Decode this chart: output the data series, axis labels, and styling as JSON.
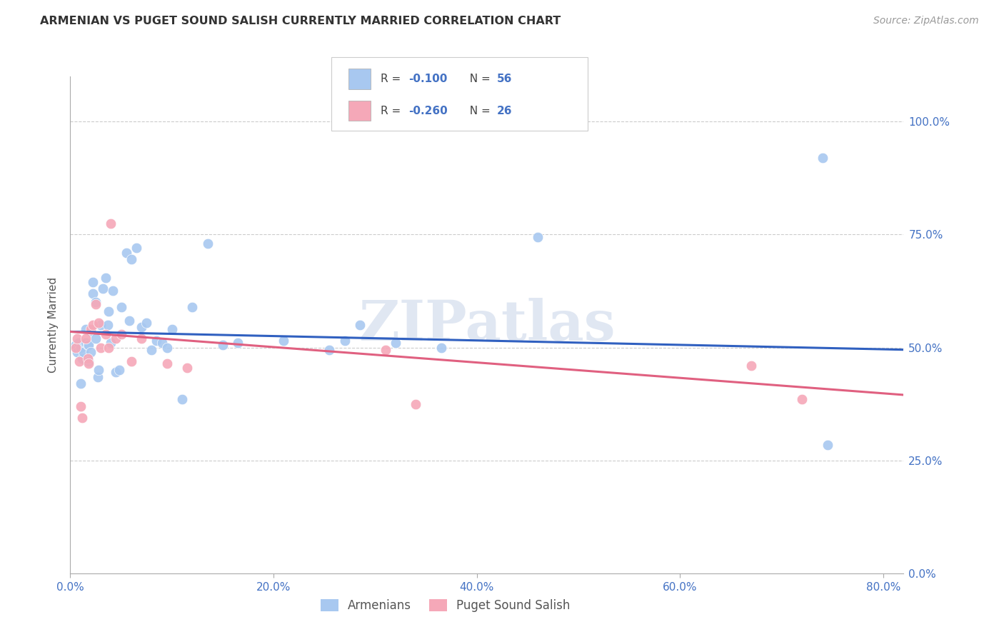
{
  "title": "ARMENIAN VS PUGET SOUND SALISH CURRENTLY MARRIED CORRELATION CHART",
  "source": "Source: ZipAtlas.com",
  "xlim": [
    0.0,
    0.82
  ],
  "ylim": [
    0.0,
    1.1
  ],
  "ylabel": "Currently Married",
  "legend_labels": [
    "Armenians",
    "Puget Sound Salish"
  ],
  "blue_R": -0.1,
  "blue_N": 56,
  "pink_R": -0.26,
  "pink_N": 26,
  "blue_color": "#a8c8f0",
  "pink_color": "#f5a8b8",
  "blue_line_color": "#3060c0",
  "pink_line_color": "#e06080",
  "watermark": "ZIPatlas",
  "xlabel_tick_vals": [
    0.0,
    0.2,
    0.4,
    0.6,
    0.8
  ],
  "xlabel_tick_labels": [
    "0.0%",
    "20.0%",
    "40.0%",
    "60.0%",
    "80.0%"
  ],
  "ylabel_tick_vals": [
    0.0,
    0.25,
    0.5,
    0.75,
    1.0
  ],
  "ylabel_tick_labels": [
    "0.0%",
    "25.0%",
    "50.0%",
    "75.0%",
    "100.0%"
  ],
  "blue_line_x0": 0.0,
  "blue_line_y0": 0.535,
  "blue_line_x1": 0.82,
  "blue_line_y1": 0.495,
  "pink_line_x0": 0.0,
  "pink_line_y0": 0.535,
  "pink_line_x1": 0.82,
  "pink_line_y1": 0.395,
  "blue_x": [
    0.005,
    0.007,
    0.008,
    0.01,
    0.01,
    0.012,
    0.013,
    0.015,
    0.015,
    0.015,
    0.017,
    0.018,
    0.018,
    0.02,
    0.02,
    0.022,
    0.022,
    0.025,
    0.025,
    0.027,
    0.028,
    0.03,
    0.032,
    0.035,
    0.037,
    0.038,
    0.04,
    0.042,
    0.045,
    0.048,
    0.05,
    0.055,
    0.058,
    0.06,
    0.065,
    0.07,
    0.075,
    0.08,
    0.085,
    0.09,
    0.095,
    0.1,
    0.11,
    0.12,
    0.135,
    0.15,
    0.165,
    0.21,
    0.255,
    0.27,
    0.285,
    0.32,
    0.365,
    0.46,
    0.74,
    0.745
  ],
  "blue_y": [
    0.505,
    0.49,
    0.51,
    0.42,
    0.5,
    0.475,
    0.49,
    0.51,
    0.51,
    0.54,
    0.505,
    0.505,
    0.47,
    0.535,
    0.49,
    0.62,
    0.645,
    0.52,
    0.6,
    0.435,
    0.45,
    0.55,
    0.63,
    0.655,
    0.55,
    0.58,
    0.51,
    0.625,
    0.445,
    0.45,
    0.59,
    0.71,
    0.56,
    0.695,
    0.72,
    0.545,
    0.555,
    0.495,
    0.515,
    0.51,
    0.5,
    0.54,
    0.385,
    0.59,
    0.73,
    0.505,
    0.51,
    0.515,
    0.495,
    0.515,
    0.55,
    0.51,
    0.5,
    0.745,
    0.92,
    0.285
  ],
  "pink_x": [
    0.005,
    0.007,
    0.009,
    0.01,
    0.012,
    0.015,
    0.017,
    0.018,
    0.02,
    0.022,
    0.025,
    0.028,
    0.03,
    0.035,
    0.038,
    0.04,
    0.045,
    0.05,
    0.06,
    0.07,
    0.095,
    0.115,
    0.31,
    0.34,
    0.67,
    0.72
  ],
  "pink_y": [
    0.5,
    0.52,
    0.47,
    0.37,
    0.345,
    0.52,
    0.475,
    0.465,
    0.54,
    0.55,
    0.595,
    0.555,
    0.5,
    0.53,
    0.5,
    0.775,
    0.52,
    0.53,
    0.47,
    0.52,
    0.465,
    0.455,
    0.495,
    0.375,
    0.46,
    0.385
  ]
}
